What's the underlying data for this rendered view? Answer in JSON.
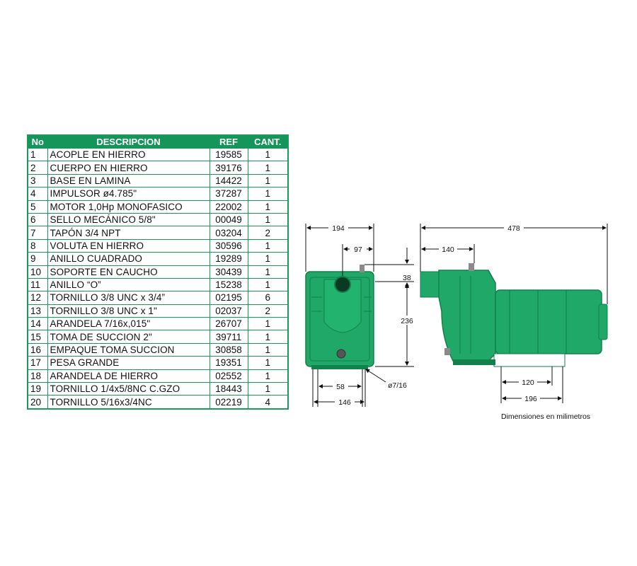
{
  "table": {
    "headers": [
      "No",
      "DESCRIPCION",
      "REF",
      "CANT."
    ],
    "rows": [
      [
        "1",
        "ACOPLE EN HIERRO",
        "19585",
        "1"
      ],
      [
        "2",
        "CUERPO EN HIERRO",
        "39176",
        "1"
      ],
      [
        "3",
        "BASE EN LAMINA",
        "14422",
        "1"
      ],
      [
        "4",
        "IMPULSOR ø4.785\"",
        "37287",
        "1"
      ],
      [
        "5",
        "MOTOR 1,0Hp MONOFASICO",
        "22002",
        "1"
      ],
      [
        "6",
        "SELLO MECÁNICO 5/8\"",
        "00049",
        "1"
      ],
      [
        "7",
        "TAPÓN 3/4 NPT",
        "03204",
        "2"
      ],
      [
        "8",
        "VOLUTA EN HIERRO",
        "30596",
        "1"
      ],
      [
        "9",
        "ANILLO CUADRADO",
        "19289",
        "1"
      ],
      [
        "10",
        "SOPORTE EN CAUCHO",
        "30439",
        "1"
      ],
      [
        "11",
        "ANILLO “O”",
        "15238",
        "1"
      ],
      [
        "12",
        "TORNILLO 3/8 UNC x 3/4”",
        "02195",
        "6"
      ],
      [
        "13",
        "TORNILLO 3/8 UNC x 1\"",
        "02037",
        "2"
      ],
      [
        "14",
        "ARANDELA 7/16x,015\"",
        "26707",
        "1"
      ],
      [
        "15",
        "TOMA DE SUCCION 2\"",
        "39711",
        "1"
      ],
      [
        "16",
        "EMPAQUE TOMA SUCCION",
        "30858",
        "1"
      ],
      [
        "17",
        "PESA GRANDE",
        "19351",
        "1"
      ],
      [
        "18",
        "ARANDELA DE HIERRO",
        "02552",
        "1"
      ],
      [
        "19",
        "TORNILLO 1/4x5/8NC C.GZO",
        "18443",
        "1"
      ],
      [
        "20",
        "TORNILLO 5/16x3/4NC",
        "02219",
        "4"
      ]
    ]
  },
  "drawing": {
    "front_view": {
      "width_total": "194",
      "offset_top": "97",
      "height_offset": "38",
      "height": "236",
      "base_inner": "58",
      "base_outer": "146",
      "bolt_hole": "ø7/16"
    },
    "side_view": {
      "length_total": "478",
      "suction_offset": "140",
      "base_inner": "120",
      "base_outer": "196"
    },
    "caption": "Dimensiones en milimetros",
    "colors": {
      "pump_green": "#1fa867",
      "pump_dark": "#12804a",
      "table_green": "#16955a"
    }
  }
}
